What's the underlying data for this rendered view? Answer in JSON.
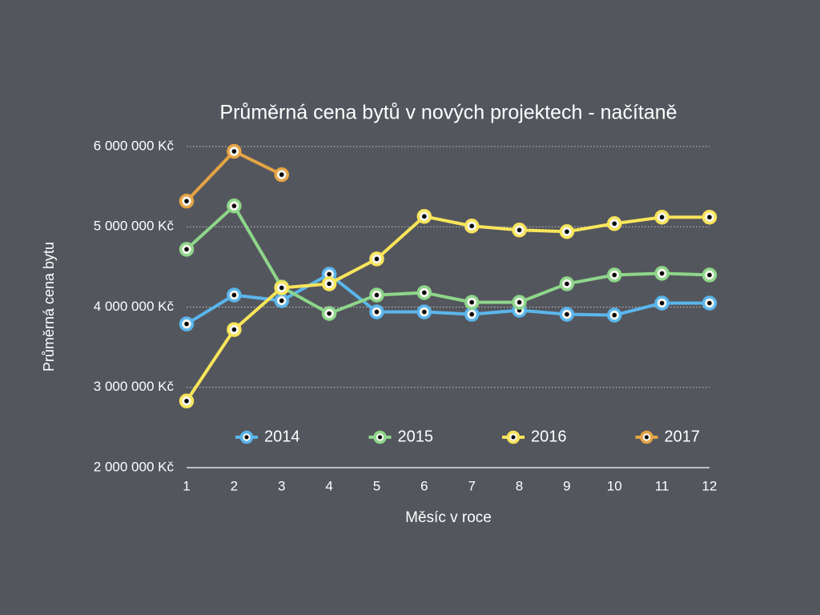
{
  "chart_data": {
    "type": "line",
    "title": "Průměrná cena bytů v nových projektech - načítaně",
    "xlabel": "Měsíc v roce",
    "ylabel": "Průměrná cena bytu",
    "x": [
      1,
      2,
      3,
      4,
      5,
      6,
      7,
      8,
      9,
      10,
      11,
      12
    ],
    "xlim": [
      1,
      12
    ],
    "xticks": [
      1,
      2,
      3,
      4,
      5,
      6,
      7,
      8,
      9,
      10,
      11,
      12
    ],
    "ylim": [
      2000000,
      6000000
    ],
    "yticks": [
      {
        "value": 2000000,
        "label": "2 000 000 Kč"
      },
      {
        "value": 3000000,
        "label": "3 000 000 Kč"
      },
      {
        "value": 4000000,
        "label": "4 000 000 Kč"
      },
      {
        "value": 5000000,
        "label": "5 000 000 Kč"
      },
      {
        "value": 6000000,
        "label": "6 000 000 Kč"
      }
    ],
    "grid": true,
    "series": [
      {
        "name": "2014",
        "color": "#5ab6ec",
        "values": [
          3790000,
          4150000,
          4080000,
          4410000,
          3940000,
          3940000,
          3910000,
          3960000,
          3910000,
          3900000,
          4050000,
          4050000
        ]
      },
      {
        "name": "2015",
        "color": "#8ed68a",
        "values": [
          4720000,
          5260000,
          4250000,
          3920000,
          4150000,
          4180000,
          4060000,
          4060000,
          4290000,
          4400000,
          4420000,
          4400000
        ]
      },
      {
        "name": "2016",
        "color": "#f8e55a",
        "values": [
          2830000,
          3720000,
          4240000,
          4290000,
          4600000,
          5130000,
          5010000,
          4960000,
          4940000,
          5040000,
          5120000,
          5120000
        ]
      },
      {
        "name": "2017",
        "color": "#e5a445",
        "values": [
          5320000,
          5940000,
          5650000,
          null,
          null,
          null,
          null,
          null,
          null,
          null,
          null,
          null
        ]
      }
    ]
  }
}
